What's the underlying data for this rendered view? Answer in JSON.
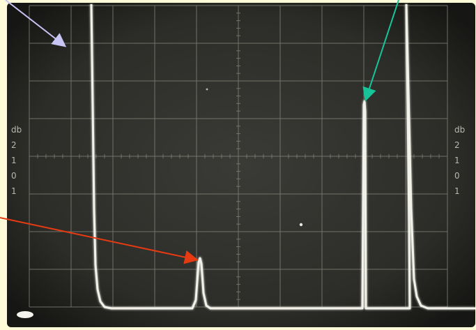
{
  "figure": {
    "background_color": "#fefcd8",
    "screen_color": "#2c2c28",
    "grid_color": "#8a8a80",
    "trace_color": "#f2f2ea",
    "label_color": "#b9b9b0",
    "left_scale_labels": [
      "db",
      "2",
      "1",
      "0",
      "1"
    ],
    "right_scale_labels": [
      "db",
      "2",
      "1",
      "0",
      "1"
    ],
    "graticule": {
      "vertical_divisions": 10,
      "horizontal_divisions": 8
    }
  },
  "annotations": [
    {
      "id": "arrow-lavender",
      "color": "#c8c4f4",
      "points_to": "screen grid"
    },
    {
      "id": "arrow-teal",
      "color": "#17c498",
      "points_to": "narrow vertical trace spike"
    },
    {
      "id": "arrow-red",
      "color": "#e63a12",
      "points_to": "small pulse on baseline"
    }
  ]
}
